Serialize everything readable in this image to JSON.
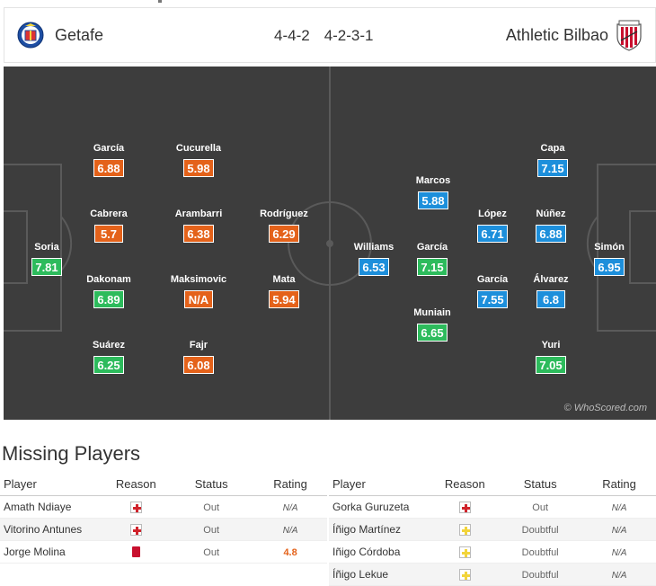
{
  "header": {
    "home_team": "Getafe",
    "away_team": "Athletic Bilbao",
    "home_formation": "4-4-2",
    "away_formation": "4-2-3-1"
  },
  "colors": {
    "good": "#2dbb5c",
    "average": "#e4621a",
    "away": "#1d8fdb"
  },
  "lineup": {
    "home": [
      {
        "name": "García",
        "rating": "6.88"
      },
      {
        "name": "Cucurella",
        "rating": "5.98"
      },
      {
        "name": "Cabrera",
        "rating": "5.7"
      },
      {
        "name": "Arambarri",
        "rating": "6.38"
      },
      {
        "name": "Rodríguez",
        "rating": "6.29"
      },
      {
        "name": "Soria",
        "rating": "7.81"
      },
      {
        "name": "Dakonam",
        "rating": "6.89"
      },
      {
        "name": "Maksimovic",
        "rating": "N/A"
      },
      {
        "name": "Mata",
        "rating": "5.94"
      },
      {
        "name": "Suárez",
        "rating": "6.25"
      },
      {
        "name": "Fajr",
        "rating": "6.08"
      }
    ],
    "away": [
      {
        "name": "Capa",
        "rating": "7.15"
      },
      {
        "name": "Marcos",
        "rating": "5.88"
      },
      {
        "name": "López",
        "rating": "6.71"
      },
      {
        "name": "Núñez",
        "rating": "6.88"
      },
      {
        "name": "Williams",
        "rating": "6.53"
      },
      {
        "name": "García",
        "rating": "7.15"
      },
      {
        "name": "Simón",
        "rating": "6.95"
      },
      {
        "name": "García",
        "rating": "7.55"
      },
      {
        "name": "Álvarez",
        "rating": "6.8"
      },
      {
        "name": "Muniain",
        "rating": "6.65"
      },
      {
        "name": "Yuri",
        "rating": "7.05"
      }
    ]
  },
  "watermark": "© WhoScored.com",
  "missing": {
    "title": "Missing Players",
    "columns": {
      "player": "Player",
      "reason": "Reason",
      "status": "Status",
      "rating": "Rating"
    },
    "home": [
      {
        "player": "Amath Ndiaye",
        "reason_icon": "injury-icon",
        "status": "Out",
        "rating": "N/A"
      },
      {
        "player": "Vitorino Antunes",
        "reason_icon": "injury-icon",
        "status": "Out",
        "rating": "N/A"
      },
      {
        "player": "Jorge Molina",
        "reason_icon": "redcard-icon",
        "status": "Out",
        "rating": "4.8"
      }
    ],
    "away": [
      {
        "player": "Gorka Guruzeta",
        "reason_icon": "injury-icon",
        "status": "Out",
        "rating": "N/A"
      },
      {
        "player": "Íñigo Martínez",
        "reason_icon": "doubt-icon",
        "status": "Doubtful",
        "rating": "N/A"
      },
      {
        "player": "Iñigo Córdoba",
        "reason_icon": "doubt-icon",
        "status": "Doubtful",
        "rating": "N/A"
      },
      {
        "player": "Íñigo Lekue",
        "reason_icon": "doubt-icon",
        "status": "Doubtful",
        "rating": "N/A"
      }
    ]
  }
}
